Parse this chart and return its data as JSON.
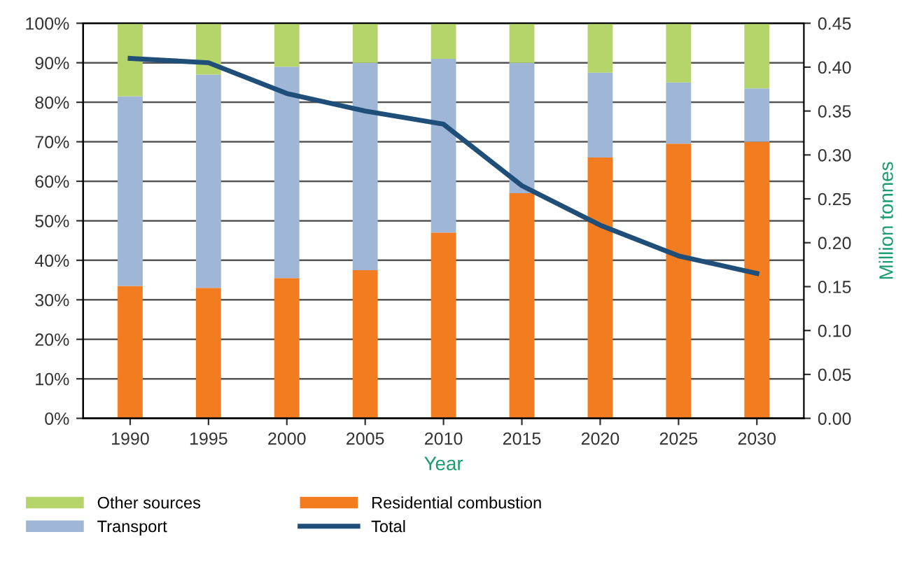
{
  "chart_data": {
    "type": "bar",
    "stacked": true,
    "xlabel": "Year",
    "y2label": "Million tonnes",
    "categories": [
      "1990",
      "1995",
      "2000",
      "2005",
      "2010",
      "2015",
      "2020",
      "2025",
      "2030"
    ],
    "series": [
      {
        "name": "Residential combustion",
        "color": "#f47c20",
        "values": [
          33.5,
          33,
          35.5,
          37.5,
          47,
          57,
          66,
          69.5,
          70
        ]
      },
      {
        "name": "Transport",
        "color": "#9fb6d6",
        "values": [
          48,
          54,
          53.5,
          52.5,
          44,
          33,
          21.5,
          15.5,
          13.5
        ]
      },
      {
        "name": "Other sources",
        "color": "#b5d56a",
        "values": [
          18.5,
          13,
          11,
          10,
          9,
          10,
          12.5,
          15,
          16.5
        ]
      },
      {
        "name": "Total",
        "type": "line",
        "axis": "y2",
        "color": "#1f4e79",
        "values": [
          0.41,
          0.405,
          0.37,
          0.35,
          0.335,
          0.265,
          0.22,
          0.185,
          0.165
        ]
      }
    ],
    "ylim": [
      0,
      100
    ],
    "yticks": [
      {
        "value": 0,
        "label": "0%"
      },
      {
        "value": 10,
        "label": "10%"
      },
      {
        "value": 20,
        "label": "20%"
      },
      {
        "value": 30,
        "label": "30%"
      },
      {
        "value": 40,
        "label": "40%"
      },
      {
        "value": 50,
        "label": "50%"
      },
      {
        "value": 60,
        "label": "60%"
      },
      {
        "value": 70,
        "label": "70%"
      },
      {
        "value": 80,
        "label": "80%"
      },
      {
        "value": 90,
        "label": "90%"
      },
      {
        "value": 100,
        "label": "100%"
      }
    ],
    "y2lim": [
      0,
      0.45
    ],
    "y2ticks": [
      {
        "value": 0,
        "label": "0.00"
      },
      {
        "value": 0.05,
        "label": "0.05"
      },
      {
        "value": 0.1,
        "label": "0.10"
      },
      {
        "value": 0.15,
        "label": "0.15"
      },
      {
        "value": 0.2,
        "label": "0.20"
      },
      {
        "value": 0.25,
        "label": "0.25"
      },
      {
        "value": 0.3,
        "label": "0.30"
      },
      {
        "value": 0.35,
        "label": "0.35"
      },
      {
        "value": 0.4,
        "label": "0.40"
      },
      {
        "value": 0.45,
        "label": "0.45"
      }
    ],
    "grid": "y",
    "legend": "bottom"
  }
}
